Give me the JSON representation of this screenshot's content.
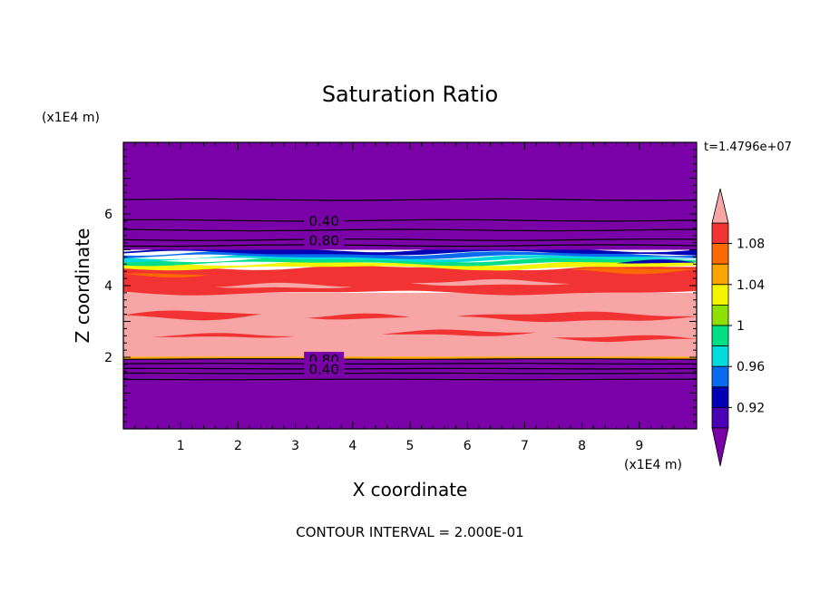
{
  "chart_data": {
    "type": "heatmap",
    "title": "Saturation Ratio",
    "xlabel": "X coordinate",
    "ylabel": "Z coordinate",
    "x_unit": "(x1E4 m)",
    "y_unit": "(x1E4 m)",
    "xlim": [
      0,
      10
    ],
    "ylim": [
      0,
      8
    ],
    "x_ticks": [
      "1",
      "2",
      "3",
      "4",
      "5",
      "6",
      "7",
      "8",
      "9"
    ],
    "y_ticks": [
      "2",
      "4",
      "6"
    ],
    "time_label": "t=1.4796e+07",
    "footer": "CONTOUR INTERVAL = 2.000E-01",
    "contour_labels": [
      {
        "text": "0.40",
        "x": 3.5,
        "y": 5.82
      },
      {
        "text": "0.80",
        "x": 3.5,
        "y": 5.28
      },
      {
        "text": "0.80",
        "x": 3.5,
        "y": 1.95
      },
      {
        "text": "0.40",
        "x": 3.5,
        "y": 1.68
      }
    ],
    "colorbar": {
      "labels": [
        "1.08",
        "1.04",
        "1",
        "0.96",
        "0.92"
      ],
      "levels": [
        1.1,
        1.08,
        1.06,
        1.04,
        1.02,
        1.0,
        0.98,
        0.96,
        0.94,
        0.92,
        0.9
      ],
      "colors": [
        "#f7a5a5",
        "#f23333",
        "#fa6a00",
        "#f9a400",
        "#f5f500",
        "#8de000",
        "#00de86",
        "#00dcdc",
        "#0a6af0",
        "#0000b4",
        "#4a00b4",
        "#7a00a8"
      ],
      "extend": "both"
    },
    "layers": [
      {
        "y_bottom": 0.0,
        "y_top": 1.95,
        "level_color": "#7a00a8"
      },
      {
        "y_bottom": 1.95,
        "y_top": 2.02,
        "level_color": "#f9a400"
      },
      {
        "y_bottom": 2.02,
        "y_top": 3.8,
        "level_color": "#f7a5a5"
      },
      {
        "y_bottom": 3.8,
        "y_top": 4.5,
        "level_color": "#f23333"
      },
      {
        "y_bottom": 4.5,
        "y_top": 4.62,
        "level_color": "#f5f500"
      },
      {
        "y_bottom": 4.62,
        "y_top": 4.72,
        "level_color": "#00de86"
      },
      {
        "y_bottom": 4.72,
        "y_top": 4.8,
        "level_color": "#00dcdc"
      },
      {
        "y_bottom": 4.8,
        "y_top": 4.9,
        "level_color": "#0a6af0"
      },
      {
        "y_bottom": 4.9,
        "y_top": 5.0,
        "level_color": "#0000b4"
      },
      {
        "y_bottom": 5.0,
        "y_top": 8.0,
        "level_color": "#7a00a8"
      }
    ],
    "contour_lines_y": [
      6.4,
      5.82,
      5.55,
      5.28,
      5.12,
      1.95,
      1.82,
      1.68,
      1.55,
      1.38
    ]
  }
}
